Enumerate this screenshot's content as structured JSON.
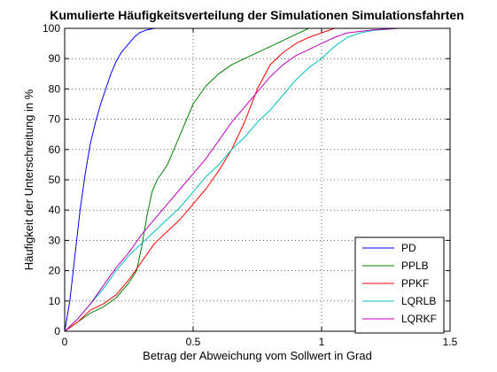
{
  "chart_data": {
    "type": "line",
    "title": "Kumulierte Häufigkeitsverteilung der Simulationen Simulationsfahrten",
    "xlabel": "Betrag der Abweichung vom Sollwert in Grad",
    "ylabel": "Häufigkeit der Unterschreitung in %",
    "xlim": [
      0,
      1.5
    ],
    "ylim": [
      0,
      100
    ],
    "xticks": [
      0,
      0.5,
      1,
      1.5
    ],
    "xtick_labels": [
      "0",
      "0.5",
      "1",
      "1.5"
    ],
    "yticks": [
      0,
      10,
      20,
      30,
      40,
      50,
      60,
      70,
      80,
      90,
      100
    ],
    "ytick_labels": [
      "0",
      "10",
      "20",
      "30",
      "40",
      "50",
      "60",
      "70",
      "80",
      "90",
      "100"
    ],
    "grid": true,
    "legend_position": "bottom-right",
    "series": [
      {
        "name": "PD",
        "color": "#0000ff",
        "points": [
          [
            0,
            0
          ],
          [
            0.02,
            10
          ],
          [
            0.04,
            25
          ],
          [
            0.06,
            40
          ],
          [
            0.08,
            52
          ],
          [
            0.1,
            62
          ],
          [
            0.12,
            69
          ],
          [
            0.14,
            75
          ],
          [
            0.16,
            80
          ],
          [
            0.18,
            85
          ],
          [
            0.2,
            89
          ],
          [
            0.22,
            92
          ],
          [
            0.25,
            95
          ],
          [
            0.27,
            97
          ],
          [
            0.29,
            98.5
          ],
          [
            0.32,
            99.5
          ],
          [
            0.35,
            100
          ]
        ]
      },
      {
        "name": "PPLB",
        "color": "#008000",
        "points": [
          [
            0,
            0
          ],
          [
            0.05,
            3
          ],
          [
            0.1,
            6
          ],
          [
            0.15,
            8
          ],
          [
            0.2,
            11
          ],
          [
            0.25,
            16
          ],
          [
            0.28,
            20
          ],
          [
            0.3,
            28
          ],
          [
            0.32,
            38
          ],
          [
            0.34,
            46
          ],
          [
            0.36,
            50
          ],
          [
            0.4,
            55
          ],
          [
            0.45,
            65
          ],
          [
            0.5,
            75
          ],
          [
            0.55,
            81
          ],
          [
            0.6,
            85
          ],
          [
            0.65,
            88
          ],
          [
            0.7,
            90
          ],
          [
            0.75,
            92
          ],
          [
            0.8,
            94
          ],
          [
            0.85,
            96
          ],
          [
            0.9,
            98
          ],
          [
            0.95,
            100
          ]
        ]
      },
      {
        "name": "PPKF",
        "color": "#ff0000",
        "points": [
          [
            0,
            0
          ],
          [
            0.05,
            3
          ],
          [
            0.1,
            7
          ],
          [
            0.15,
            9
          ],
          [
            0.2,
            12
          ],
          [
            0.25,
            17
          ],
          [
            0.3,
            23
          ],
          [
            0.35,
            29
          ],
          [
            0.4,
            33
          ],
          [
            0.45,
            37
          ],
          [
            0.5,
            42
          ],
          [
            0.55,
            47
          ],
          [
            0.6,
            53
          ],
          [
            0.65,
            60
          ],
          [
            0.7,
            69
          ],
          [
            0.75,
            80
          ],
          [
            0.8,
            88
          ],
          [
            0.85,
            92
          ],
          [
            0.9,
            95
          ],
          [
            0.95,
            97
          ],
          [
            1,
            98.5
          ],
          [
            1.05,
            100
          ]
        ]
      },
      {
        "name": "LQRLB",
        "color": "#00bfbf",
        "points": [
          [
            0,
            0
          ],
          [
            0.05,
            4
          ],
          [
            0.1,
            9
          ],
          [
            0.15,
            14
          ],
          [
            0.2,
            20
          ],
          [
            0.25,
            25
          ],
          [
            0.3,
            29
          ],
          [
            0.35,
            33
          ],
          [
            0.4,
            37
          ],
          [
            0.45,
            41
          ],
          [
            0.5,
            46
          ],
          [
            0.55,
            51
          ],
          [
            0.6,
            55
          ],
          [
            0.65,
            60
          ],
          [
            0.7,
            64
          ],
          [
            0.75,
            69
          ],
          [
            0.8,
            73
          ],
          [
            0.85,
            78
          ],
          [
            0.9,
            83
          ],
          [
            0.95,
            87
          ],
          [
            1,
            90
          ],
          [
            1.05,
            94
          ],
          [
            1.1,
            97
          ],
          [
            1.15,
            98.5
          ],
          [
            1.2,
            99.3
          ],
          [
            1.3,
            100
          ]
        ]
      },
      {
        "name": "LQRKF",
        "color": "#bf00bf",
        "points": [
          [
            0,
            0
          ],
          [
            0.05,
            4
          ],
          [
            0.1,
            9
          ],
          [
            0.15,
            15
          ],
          [
            0.2,
            21
          ],
          [
            0.25,
            26
          ],
          [
            0.3,
            32
          ],
          [
            0.35,
            37
          ],
          [
            0.4,
            42
          ],
          [
            0.45,
            47
          ],
          [
            0.5,
            52
          ],
          [
            0.55,
            57
          ],
          [
            0.6,
            63
          ],
          [
            0.65,
            69
          ],
          [
            0.7,
            74
          ],
          [
            0.75,
            79
          ],
          [
            0.8,
            84
          ],
          [
            0.85,
            88
          ],
          [
            0.9,
            91
          ],
          [
            0.95,
            93
          ],
          [
            1,
            95
          ],
          [
            1.05,
            97
          ],
          [
            1.1,
            98.5
          ],
          [
            1.2,
            99.5
          ],
          [
            1.3,
            100
          ]
        ]
      }
    ]
  }
}
